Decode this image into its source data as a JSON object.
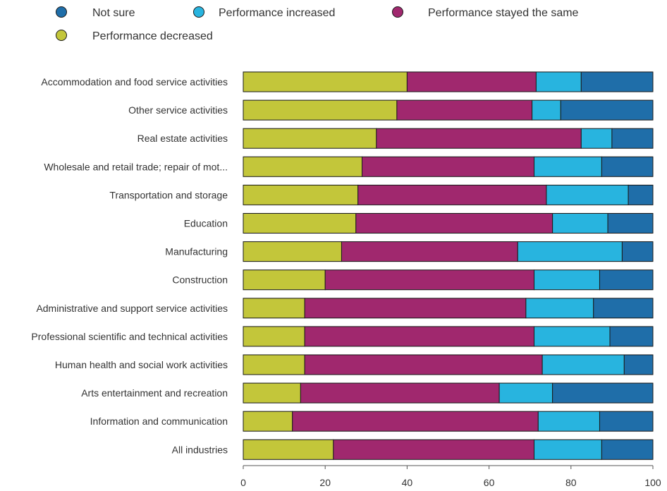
{
  "chart_data": {
    "type": "bar",
    "orientation": "horizontal",
    "stacked": true,
    "categories": [
      "Accommodation and food service activities",
      "Other service activities",
      "Real estate activities",
      "Wholesale and retail trade; repair of mot...",
      "Transportation and storage",
      "Education",
      "Manufacturing",
      "Construction",
      "Administrative and support service activities",
      "Professional scientific and technical activities",
      "Human health and social work activities",
      "Arts entertainment and recreation",
      "Information and communication",
      "All industries"
    ],
    "series": [
      {
        "name": "Performance decreased",
        "color": "#c3c63a",
        "values": [
          40,
          37.5,
          32.5,
          29,
          28,
          27.5,
          24,
          20,
          15,
          15,
          15,
          14,
          12,
          22
        ]
      },
      {
        "name": "Performance stayed the same",
        "color": "#a0286e",
        "values": [
          31.5,
          33,
          50,
          42,
          46,
          48,
          43,
          51,
          54,
          56,
          58,
          48.5,
          60,
          49
        ]
      },
      {
        "name": "Performance increased",
        "color": "#28b4df",
        "values": [
          11,
          7,
          7.5,
          16.5,
          20,
          13.5,
          25.5,
          16,
          16.5,
          18.5,
          20,
          13,
          15,
          16.5
        ]
      },
      {
        "name": "Not sure",
        "color": "#1f6ea9",
        "values": [
          17.5,
          22.5,
          10,
          12.5,
          6,
          11,
          7.5,
          13,
          14.5,
          10.5,
          7,
          24.5,
          13,
          12.5
        ]
      }
    ],
    "legend": {
      "placement": "top",
      "entries": [
        {
          "name": "Not sure",
          "color": "#1f6ea9"
        },
        {
          "name": "Performance increased",
          "color": "#28b4df"
        },
        {
          "name": "Performance stayed the same",
          "color": "#a0286e"
        },
        {
          "name": "Performance decreased",
          "color": "#c3c63a"
        }
      ]
    },
    "xlim": [
      0,
      100
    ],
    "xticks": [
      0,
      20,
      40,
      60,
      80,
      100
    ],
    "title": "",
    "xlabel": "",
    "ylabel": "",
    "grid": false
  }
}
